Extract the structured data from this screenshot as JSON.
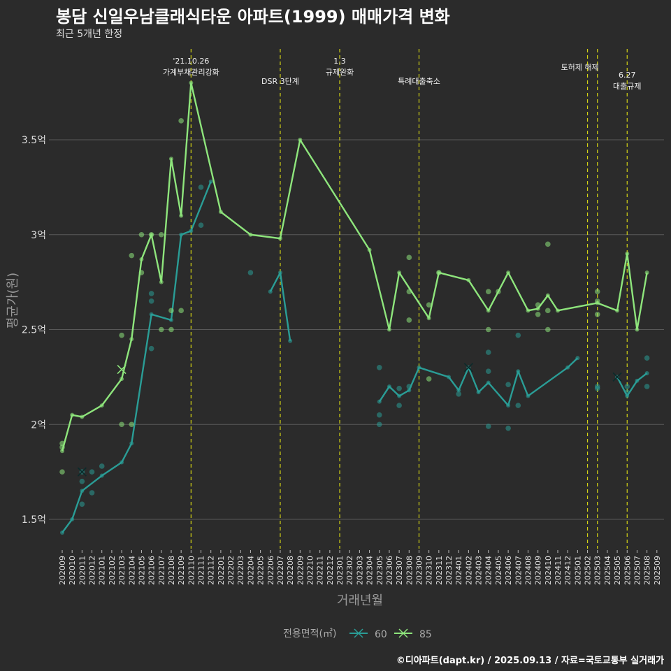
{
  "title": "봉담 신일우남클래식타운 아파트(1999) 매매가격 변화",
  "subtitle": "최근 5개년 한정",
  "caption": "©디아파트(dapt.kr) / 2025.09.13 / 자료=국토교통부 실거래가",
  "colors": {
    "s60": "#2a9d96",
    "s85": "#8ee57c",
    "vline": "#d4d414",
    "bg": "#2b2b2b",
    "grid": "#5a5a5a"
  },
  "chart_data": {
    "type": "line",
    "title": "봉담 신일우남클래식타운 아파트(1999) 매매가격 변화",
    "xlabel": "거래년월",
    "ylabel": "평균가(원)",
    "ylim": [
      1.3,
      3.95
    ],
    "yticks": [
      {
        "v": 1.5,
        "label": "1.5억"
      },
      {
        "v": 2,
        "label": "2억"
      },
      {
        "v": 2.5,
        "label": "2.5억"
      },
      {
        "v": 3,
        "label": "3억"
      },
      {
        "v": 3.5,
        "label": "3.5억"
      }
    ],
    "x": [
      "202009",
      "202010",
      "202011",
      "202012",
      "202101",
      "202102",
      "202103",
      "202104",
      "202105",
      "202106",
      "202107",
      "202108",
      "202109",
      "202110",
      "202111",
      "202112",
      "202201",
      "202202",
      "202203",
      "202204",
      "202205",
      "202206",
      "202207",
      "202208",
      "202209",
      "202210",
      "202211",
      "202212",
      "202301",
      "202302",
      "202303",
      "202304",
      "202305",
      "202306",
      "202307",
      "202308",
      "202309",
      "202310",
      "202311",
      "202312",
      "202401",
      "202402",
      "202403",
      "202404",
      "202405",
      "202406",
      "202407",
      "202408",
      "202409",
      "202410",
      "202411",
      "202412",
      "202501",
      "202502",
      "202503",
      "202504",
      "202505",
      "202506",
      "202507",
      "202508",
      "202509"
    ],
    "legend": {
      "title": "전용면적(㎡)",
      "placement": "bottom"
    },
    "series": [
      {
        "name": "60",
        "key": "s60",
        "segments": [
          [
            [
              0,
              1.43
            ],
            [
              1,
              1.5
            ],
            [
              2,
              1.65
            ],
            [
              4,
              1.73
            ],
            [
              6,
              1.8
            ],
            [
              7,
              1.9
            ],
            [
              9,
              2.58
            ],
            [
              11,
              2.55
            ],
            [
              12,
              3.0
            ],
            [
              13,
              3.02
            ],
            [
              15,
              3.28
            ]
          ],
          [
            [
              21,
              2.7
            ],
            [
              22,
              2.8
            ],
            [
              23,
              2.44
            ]
          ],
          [
            [
              32,
              2.12
            ],
            [
              33,
              2.2
            ],
            [
              34,
              2.15
            ],
            [
              35,
              2.18
            ],
            [
              36,
              2.3
            ],
            [
              39,
              2.25
            ],
            [
              40,
              2.18
            ],
            [
              41,
              2.3
            ],
            [
              42,
              2.17
            ],
            [
              43,
              2.22
            ],
            [
              45,
              2.1
            ],
            [
              46,
              2.28
            ],
            [
              47,
              2.15
            ],
            [
              51,
              2.3
            ],
            [
              52,
              2.35
            ]
          ],
          [
            [
              56,
              2.25
            ],
            [
              57,
              2.15
            ],
            [
              58,
              2.23
            ],
            [
              59,
              2.27
            ]
          ]
        ],
        "points": [
          [
            2,
            1.75
          ],
          [
            2,
            1.7
          ],
          [
            2,
            1.58
          ],
          [
            3,
            1.75
          ],
          [
            3,
            1.64
          ],
          [
            4,
            1.78
          ],
          [
            9,
            2.69
          ],
          [
            9,
            2.65
          ],
          [
            9,
            2.4
          ],
          [
            14,
            3.25
          ],
          [
            14,
            3.05
          ],
          [
            19,
            2.8
          ],
          [
            32,
            2.3
          ],
          [
            32,
            2.05
          ],
          [
            32,
            2.0
          ],
          [
            34,
            2.19
          ],
          [
            34,
            2.1
          ],
          [
            35,
            2.2
          ],
          [
            40,
            2.16
          ],
          [
            43,
            2.38
          ],
          [
            43,
            2.28
          ],
          [
            43,
            1.99
          ],
          [
            45,
            2.21
          ],
          [
            45,
            1.98
          ],
          [
            46,
            2.47
          ],
          [
            46,
            2.1
          ],
          [
            54,
            2.2
          ],
          [
            54,
            2.19
          ],
          [
            57,
            2.2
          ],
          [
            57,
            2.17
          ],
          [
            59,
            2.35
          ],
          [
            59,
            2.2
          ]
        ],
        "crosses": [
          [
            2,
            1.75
          ],
          [
            41,
            2.3
          ],
          [
            56,
            2.25
          ]
        ]
      },
      {
        "name": "85",
        "key": "s85",
        "segments": [
          [
            [
              0,
              1.86
            ],
            [
              1,
              2.05
            ],
            [
              2,
              2.04
            ],
            [
              4,
              2.1
            ],
            [
              6,
              2.24
            ],
            [
              7,
              2.45
            ],
            [
              8,
              2.87
            ],
            [
              9,
              3.0
            ],
            [
              10,
              2.75
            ],
            [
              11,
              3.4
            ],
            [
              12,
              3.1
            ],
            [
              13,
              3.8
            ],
            [
              16,
              3.12
            ],
            [
              19,
              3.0
            ],
            [
              22,
              2.98
            ],
            [
              24,
              3.5
            ],
            [
              31,
              2.92
            ],
            [
              33,
              2.5
            ],
            [
              34,
              2.8
            ],
            [
              37,
              2.56
            ],
            [
              38,
              2.8
            ],
            [
              41,
              2.76
            ],
            [
              43,
              2.6
            ],
            [
              45,
              2.8
            ],
            [
              47,
              2.6
            ],
            [
              48,
              2.61
            ],
            [
              49,
              2.68
            ],
            [
              50,
              2.6
            ],
            [
              54,
              2.64
            ],
            [
              56,
              2.6
            ],
            [
              57,
              2.9
            ],
            [
              58,
              2.5
            ],
            [
              59,
              2.8
            ]
          ]
        ],
        "points": [
          [
            0,
            1.9
          ],
          [
            0,
            1.88
          ],
          [
            0,
            1.75
          ],
          [
            6,
            2.47
          ],
          [
            6,
            2.0
          ],
          [
            7,
            2.89
          ],
          [
            7,
            2.0
          ],
          [
            8,
            2.8
          ],
          [
            8,
            3.0
          ],
          [
            9,
            3.0
          ],
          [
            10,
            3.0
          ],
          [
            10,
            2.5
          ],
          [
            11,
            2.6
          ],
          [
            11,
            2.5
          ],
          [
            12,
            3.6
          ],
          [
            12,
            2.6
          ],
          [
            35,
            2.88
          ],
          [
            35,
            2.7
          ],
          [
            35,
            2.55
          ],
          [
            37,
            2.63
          ],
          [
            37,
            2.24
          ],
          [
            38,
            2.8
          ],
          [
            43,
            2.7
          ],
          [
            43,
            2.5
          ],
          [
            44,
            2.7
          ],
          [
            48,
            2.63
          ],
          [
            48,
            2.58
          ],
          [
            49,
            2.95
          ],
          [
            49,
            2.6
          ],
          [
            49,
            2.5
          ],
          [
            54,
            2.7
          ],
          [
            54,
            2.58
          ],
          [
            54,
            2.65
          ]
        ],
        "crosses": [
          [
            6,
            2.29
          ]
        ]
      }
    ],
    "annotations": [
      {
        "month": 13,
        "lines": [
          "'21.10.26",
          "가계부채관리강화"
        ],
        "row": 0
      },
      {
        "month": 22,
        "lines": [
          "DSR 3단계"
        ],
        "row": 2
      },
      {
        "month": 28,
        "lines": [
          "1.3",
          "규제완화"
        ],
        "row": 0
      },
      {
        "month": 36,
        "lines": [
          "특례대출축소"
        ],
        "row": 2
      },
      {
        "month": 53,
        "lines": [],
        "row": 0
      },
      {
        "month": 54,
        "lines": [],
        "row": 0
      },
      {
        "month": 57,
        "lines": [
          "6.27",
          "대출규제"
        ],
        "row": 1
      }
    ],
    "extra_annotation": {
      "between": [
        53,
        54
      ],
      "lines": [
        "토허제 해제"
      ]
    }
  }
}
